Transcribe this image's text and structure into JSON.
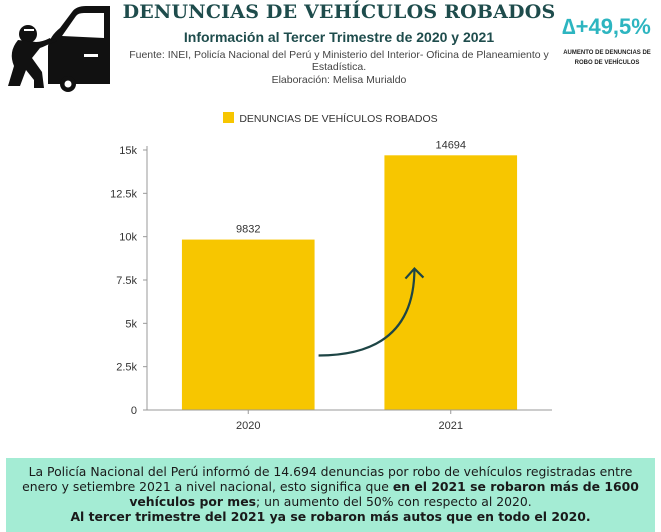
{
  "header": {
    "title": "DENUNCIAS DE VEHÍCULOS ROBADOS",
    "subtitle": "Información al Tercer Trimestre de 2020 y 2021",
    "source": "Fuente: INEI, Policía Nacional del Perú y Ministerio del Interior- Oficina de Planeamiento y Estadística.",
    "credit": "Elaboración: Melisa Murialdo"
  },
  "kpi": {
    "delta": "∆+49,5%",
    "note": "AUMENTO DE DENUNCIAS DE ROBO DE VEHÍCULOS"
  },
  "colors": {
    "bar": "#f7c600",
    "title": "#1e4c4c",
    "accent": "#2db5c0",
    "arrow": "#1d4545",
    "summary_bg": "#a4ecd4"
  },
  "icons": {
    "logo": "car-thief-icon"
  },
  "chart_data": {
    "type": "bar",
    "categories": [
      "2020",
      "2021"
    ],
    "series": [
      {
        "name": "DENUNCIAS DE VEHÍCULOS ROBADOS",
        "values": [
          9832,
          14694
        ]
      }
    ],
    "data_labels": [
      "9832",
      "14694"
    ],
    "ylim": [
      0,
      15000
    ],
    "yticks": [
      0,
      2500,
      5000,
      7500,
      10000,
      12500,
      15000
    ],
    "ytick_labels": [
      "0",
      "2.5k",
      "5k",
      "7.5k",
      "10k",
      "12.5k",
      "15k"
    ],
    "legend_position": "top-center",
    "grid": false
  },
  "summary": {
    "part1": "La Policía Nacional del Perú informó de 14.694 denuncias por robo de vehículos registradas entre enero y setiembre 2021 a nivel nacional, esto significa que ",
    "bold1": "en el 2021 se robaron más de 1600 vehículos por mes",
    "part2": "; un aumento del 50% con respecto al 2020.",
    "bold2": "Al tercer trimestre del 2021 ya se robaron más autos que en todo el 2020."
  }
}
